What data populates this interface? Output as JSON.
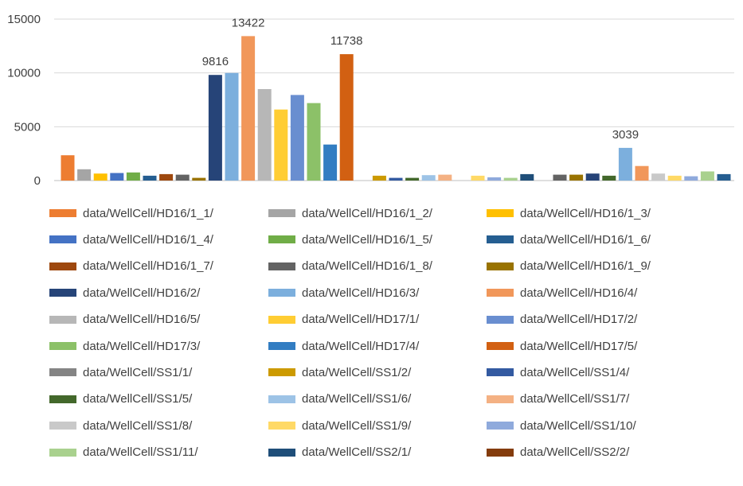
{
  "chart_data": {
    "type": "bar",
    "ylim": [
      0,
      15000
    ],
    "yticks": [
      0,
      5000,
      10000,
      15000
    ],
    "grid": true,
    "legend_position": "bottom",
    "series": [
      {
        "name": "data/WellCell/HD16/1_1/",
        "color": "#ED7D31",
        "values": [
          {
            "x": 0,
            "y": 2350
          }
        ]
      },
      {
        "name": "data/WellCell/HD16/1_2/",
        "color": "#A5A5A5",
        "values": [
          {
            "x": 1,
            "y": 1050
          }
        ]
      },
      {
        "name": "data/WellCell/HD16/1_3/",
        "color": "#FFC000",
        "values": [
          {
            "x": 2,
            "y": 650
          }
        ]
      },
      {
        "name": "data/WellCell/HD16/1_4/",
        "color": "#4472C4",
        "values": [
          {
            "x": 3,
            "y": 700
          }
        ]
      },
      {
        "name": "data/WellCell/HD16/1_5/",
        "color": "#70AD47",
        "values": [
          {
            "x": 4,
            "y": 750
          }
        ]
      },
      {
        "name": "data/WellCell/HD16/1_6/",
        "color": "#255E91",
        "values": [
          {
            "x": 5,
            "y": 450
          }
        ]
      },
      {
        "name": "data/WellCell/HD16/1_7/",
        "color": "#9E480E",
        "values": [
          {
            "x": 6,
            "y": 600
          }
        ]
      },
      {
        "name": "data/WellCell/HD16/1_8/",
        "color": "#636363",
        "values": [
          {
            "x": 7,
            "y": 550
          }
        ]
      },
      {
        "name": "data/WellCell/HD16/1_9/",
        "color": "#997300",
        "values": [
          {
            "x": 8,
            "y": 250
          }
        ]
      },
      {
        "name": "data/WellCell/HD16/2/",
        "color": "#264478",
        "values": [
          {
            "x": 9,
            "y": 9816,
            "label": "9816"
          }
        ]
      },
      {
        "name": "data/WellCell/HD16/3/",
        "color": "#7CAFDD",
        "values": [
          {
            "x": 10,
            "y": 10000
          }
        ]
      },
      {
        "name": "data/WellCell/HD16/4/",
        "color": "#F1975A",
        "values": [
          {
            "x": 11,
            "y": 13422,
            "label": "13422"
          }
        ]
      },
      {
        "name": "data/WellCell/HD16/5/",
        "color": "#B7B7B7",
        "values": [
          {
            "x": 12,
            "y": 8500
          }
        ]
      },
      {
        "name": "data/WellCell/HD17/1/",
        "color": "#FFCD33",
        "values": [
          {
            "x": 13,
            "y": 6600
          }
        ]
      },
      {
        "name": "data/WellCell/HD17/2/",
        "color": "#698ED0",
        "values": [
          {
            "x": 14,
            "y": 7950
          }
        ]
      },
      {
        "name": "data/WellCell/HD17/3/",
        "color": "#8CC168",
        "values": [
          {
            "x": 15,
            "y": 7200
          }
        ]
      },
      {
        "name": "data/WellCell/HD17/4/",
        "color": "#327DC2",
        "values": [
          {
            "x": 16,
            "y": 3350
          }
        ]
      },
      {
        "name": "data/WellCell/HD17/5/",
        "color": "#D26012",
        "values": [
          {
            "x": 17,
            "y": 11738,
            "label": "11738"
          }
        ]
      },
      {
        "name": "data/WellCell/SS1/1/",
        "color": "#848484",
        "values": []
      },
      {
        "name": "data/WellCell/SS1/2/",
        "color": "#CC9A00",
        "values": [
          {
            "x": 19,
            "y": 450
          }
        ]
      },
      {
        "name": "data/WellCell/SS1/4/",
        "color": "#335AA1",
        "values": [
          {
            "x": 20,
            "y": 250
          }
        ]
      },
      {
        "name": "data/WellCell/SS1/5/",
        "color": "#43682B",
        "values": [
          {
            "x": 21,
            "y": 250
          }
        ]
      },
      {
        "name": "data/WellCell/SS1/6/",
        "color": "#9DC3E6",
        "values": [
          {
            "x": 22,
            "y": 500
          }
        ]
      },
      {
        "name": "data/WellCell/SS1/7/",
        "color": "#F4B183",
        "values": [
          {
            "x": 23,
            "y": 550
          }
        ]
      },
      {
        "name": "data/WellCell/SS1/8/",
        "color": "#C9C9C9",
        "values": []
      },
      {
        "name": "data/WellCell/SS1/9/",
        "color": "#FFD966",
        "values": [
          {
            "x": 25,
            "y": 450
          }
        ]
      },
      {
        "name": "data/WellCell/SS1/10/",
        "color": "#8FAADC",
        "values": [
          {
            "x": 26,
            "y": 300
          }
        ]
      },
      {
        "name": "data/WellCell/SS1/11/",
        "color": "#A9D18E",
        "values": [
          {
            "x": 27,
            "y": 250
          }
        ]
      },
      {
        "name": "data/WellCell/SS2/1/",
        "color": "#1F4E79",
        "values": [
          {
            "x": 28,
            "y": 600
          }
        ]
      },
      {
        "name": "data/WellCell/SS2/2/",
        "color": "#843C0C",
        "values": []
      }
    ],
    "extra_bars": [
      {
        "x": 30,
        "y": 550,
        "color": "#636363"
      },
      {
        "x": 31,
        "y": 550,
        "color": "#997300"
      },
      {
        "x": 32,
        "y": 650,
        "color": "#264478"
      },
      {
        "x": 33,
        "y": 450,
        "color": "#43682B"
      },
      {
        "x": 34,
        "y": 3039,
        "color": "#7CAFDD",
        "label": "3039"
      },
      {
        "x": 35,
        "y": 1350,
        "color": "#F1975A"
      },
      {
        "x": 36,
        "y": 650,
        "color": "#C9C9C9"
      },
      {
        "x": 37,
        "y": 450,
        "color": "#FFD966"
      },
      {
        "x": 38,
        "y": 400,
        "color": "#8FAADC"
      },
      {
        "x": 39,
        "y": 850,
        "color": "#A9D18E"
      },
      {
        "x": 40,
        "y": 600,
        "color": "#255E91"
      }
    ]
  }
}
